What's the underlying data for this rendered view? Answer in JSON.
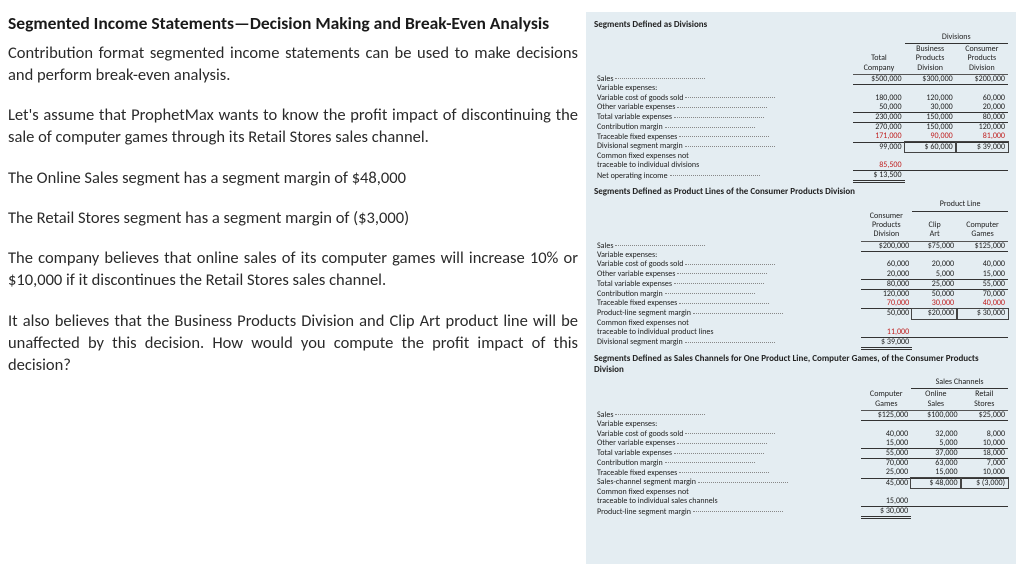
{
  "left": {
    "heading": "Segmented Income Statements—Decision Making and Break-Even Analysis",
    "p1": "Contribution format segmented income statements can be used to make decisions and perform break-even analysis.",
    "p2": "Let's assume that ProphetMax wants to know the profit impact of discontinuing the sale of computer games through its Retail Stores sales channel.",
    "p3": "The Online Sales segment has a segment margin of $48,000",
    "p4": "The Retail Stores segment has a segment margin of ($3,000)",
    "p5": "The company believes that online sales of its computer games will increase 10% or $10,000 if it discontinues the Retail Stores sales channel.",
    "p6": "It also believes that the Business Products Division and Clip Art product line will be unaffected by this decision. How would you compute the profit impact of this decision?"
  },
  "colors": {
    "panel_bg": "#e4edf2",
    "text": "#222222",
    "neg": "#c02020",
    "rule": "#333333"
  },
  "sec1": {
    "title": "Segments Defined as Divisions",
    "group_header": "Divisions",
    "col_headers": [
      "Total Company",
      "Business Products Division",
      "Consumer Products Division"
    ],
    "rows": [
      {
        "label": "Sales",
        "v": [
          "$500,000",
          "$300,000",
          "$200,000"
        ],
        "under": true
      },
      {
        "label": "Variable expenses:",
        "v": [
          "",
          "",
          ""
        ]
      },
      {
        "label": "Variable cost of goods sold",
        "indent": 1,
        "v": [
          "180,000",
          "120,000",
          "60,000"
        ]
      },
      {
        "label": "Other variable expenses",
        "indent": 1,
        "v": [
          "50,000",
          "30,000",
          "20,000"
        ],
        "under": true
      },
      {
        "label": "Total variable expenses",
        "v": [
          "230,000",
          "150,000",
          "80,000"
        ],
        "under": true
      },
      {
        "label": "Contribution margin",
        "v": [
          "270,000",
          "150,000",
          "120,000"
        ]
      },
      {
        "label": "Traceable fixed expenses",
        "v": [
          "171,000",
          "90,000",
          "81,000"
        ],
        "neg": true,
        "under": true
      },
      {
        "label": "Divisional segment margin",
        "v": [
          "99,000",
          "$ 60,000",
          "$ 39,000"
        ],
        "box_last": 2
      },
      {
        "label": "Common fixed expenses not",
        "v": [
          "",
          "",
          ""
        ]
      },
      {
        "label": "traceable to individual divisions",
        "indent": 1,
        "v": [
          "85,500",
          "",
          ""
        ],
        "neg": true,
        "under": true
      },
      {
        "label": "Net operating income",
        "v": [
          "$ 13,500",
          "",
          ""
        ],
        "dunder": true
      }
    ]
  },
  "sec2": {
    "title": "Segments Defined as Product Lines of the Consumer Products Division",
    "group_header": "Product Line",
    "col_headers": [
      "Consumer Products Division",
      "Clip Art",
      "Computer Games"
    ],
    "rows": [
      {
        "label": "Sales",
        "v": [
          "$200,000",
          "$75,000",
          "$125,000"
        ],
        "under": true
      },
      {
        "label": "Variable expenses:",
        "v": [
          "",
          "",
          ""
        ]
      },
      {
        "label": "Variable cost of goods sold",
        "indent": 1,
        "v": [
          "60,000",
          "20,000",
          "40,000"
        ]
      },
      {
        "label": "Other variable expenses",
        "indent": 1,
        "v": [
          "20,000",
          "5,000",
          "15,000"
        ],
        "under": true
      },
      {
        "label": "Total variable expenses",
        "v": [
          "80,000",
          "25,000",
          "55,000"
        ],
        "under": true
      },
      {
        "label": "Contribution margin",
        "v": [
          "120,000",
          "50,000",
          "70,000"
        ]
      },
      {
        "label": "Traceable fixed expenses",
        "v": [
          "70,000",
          "30,000",
          "40,000"
        ],
        "neg": true,
        "under": true
      },
      {
        "label": "Product-line segment margin",
        "v": [
          "50,000",
          "$20,000",
          "$ 30,000"
        ],
        "box_last": 2
      },
      {
        "label": "Common fixed expenses not",
        "v": [
          "",
          "",
          ""
        ]
      },
      {
        "label": "traceable to individual product lines",
        "indent": 1,
        "v": [
          "11,000",
          "",
          ""
        ],
        "neg": true,
        "under": true
      },
      {
        "label": "Divisional segment margin",
        "v": [
          "$ 39,000",
          "",
          ""
        ],
        "dunder": true
      }
    ]
  },
  "sec3": {
    "title": "Segments Defined as Sales Channels for One Product Line, Computer Games, of the Consumer Products Division",
    "group_header": "Sales Channels",
    "col_headers": [
      "Computer Games",
      "Online Sales",
      "Retail Stores"
    ],
    "rows": [
      {
        "label": "Sales",
        "v": [
          "$125,000",
          "$100,000",
          "$25,000"
        ],
        "under": true
      },
      {
        "label": "Variable expenses:",
        "v": [
          "",
          "",
          ""
        ]
      },
      {
        "label": "Variable cost of goods sold",
        "indent": 1,
        "v": [
          "40,000",
          "32,000",
          "8,000"
        ]
      },
      {
        "label": "Other variable expenses",
        "indent": 1,
        "v": [
          "15,000",
          "5,000",
          "10,000"
        ],
        "under": true
      },
      {
        "label": "Total variable expenses",
        "v": [
          "55,000",
          "37,000",
          "18,000"
        ],
        "under": true
      },
      {
        "label": "Contribution margin",
        "v": [
          "70,000",
          "63,000",
          "7,000"
        ]
      },
      {
        "label": "Traceable fixed expenses",
        "v": [
          "25,000",
          "15,000",
          "10,000"
        ],
        "under": true
      },
      {
        "label": "Sales-channel segment margin",
        "v": [
          "45,000",
          "$ 48,000",
          "$ (3,000)"
        ],
        "box_last": 2
      },
      {
        "label": "Common fixed expenses not",
        "v": [
          "",
          "",
          ""
        ]
      },
      {
        "label": "traceable to individual sales channels",
        "indent": 1,
        "v": [
          "15,000",
          "",
          ""
        ],
        "under": true
      },
      {
        "label": "Product-line segment margin",
        "v": [
          "$ 30,000",
          "",
          ""
        ],
        "dunder": true
      }
    ]
  }
}
